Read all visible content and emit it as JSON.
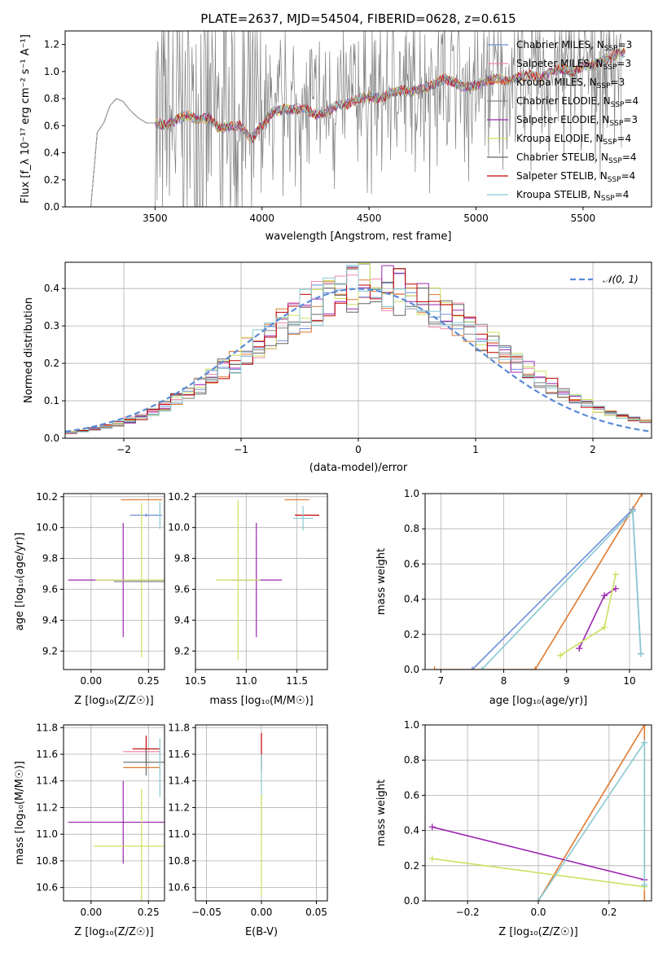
{
  "colors": {
    "chabrier_miles": "#6f8fd6",
    "salpeter_miles": "#f08aa8",
    "kroupa_miles": "#e07a30",
    "chabrier_elodie": "#888888",
    "salpeter_elodie": "#9c27b0",
    "kroupa_elodie": "#cde060",
    "chabrier_stelib": "#666666",
    "salpeter_stelib": "#c00000",
    "kroupa_stelib": "#88c8d0",
    "gaussian": "#5b8bd6",
    "data_spectrum": "#808080"
  },
  "chart_data": [
    {
      "id": "spectrum",
      "type": "line",
      "title": "PLATE=2637, MJD=54504, FIBERID=0628, z=0.615",
      "xlabel": "wavelength [Angstrom, rest frame]",
      "ylabel": "Flux [f_λ 10⁻¹⁷ erg cm⁻² s⁻¹ A⁻¹]",
      "xlim": [
        3080,
        5820
      ],
      "ylim": [
        0,
        1.3
      ],
      "xticks": [
        "3500",
        "4000",
        "4500",
        "5000",
        "5500"
      ],
      "yticks": [
        "0.0",
        "0.2",
        "0.4",
        "0.6",
        "0.8",
        "1.0",
        "1.2"
      ],
      "legend_position": "upper-right",
      "legend": [
        {
          "text": "Chabrier MILES, N",
          "sub": "SSP",
          "suffix": "=3",
          "color": "#6f8fd6"
        },
        {
          "text": "Salpeter MILES, N",
          "sub": "SSP",
          "suffix": "=3",
          "color": "#f08aa8"
        },
        {
          "text": "Kroupa MILES, N",
          "sub": "SSP",
          "suffix": "=3",
          "color": "#e07a30"
        },
        {
          "text": "Chabrier ELODIE, N",
          "sub": "SSP",
          "suffix": "=4",
          "color": "#888888"
        },
        {
          "text": "Salpeter ELODIE, N",
          "sub": "SSP",
          "suffix": "=3",
          "color": "#9c27b0"
        },
        {
          "text": "Kroupa ELODIE, N",
          "sub": "SSP",
          "suffix": "=4",
          "color": "#cde060"
        },
        {
          "text": "Chabrier STELIB, N",
          "sub": "SSP",
          "suffix": "=4",
          "color": "#666666"
        },
        {
          "text": "Salpeter STELIB, N",
          "sub": "SSP",
          "suffix": "=4",
          "color": "#c00000"
        },
        {
          "text": "Kroupa STELIB, N",
          "sub": "SSP",
          "suffix": "=4",
          "color": "#88c8d0"
        }
      ],
      "model_continuum": {
        "x": [
          3200,
          3230,
          3260,
          3290,
          3320,
          3350,
          3380,
          3420,
          3460,
          3500,
          3550,
          3600,
          3650,
          3700,
          3750,
          3800,
          3850,
          3900,
          3950,
          4000,
          4050,
          4100,
          4150,
          4200,
          4250,
          4300,
          4350,
          4400,
          4450,
          4500,
          4550,
          4600,
          4650,
          4700,
          4750,
          4800,
          4850,
          4900,
          4950,
          5000,
          5050,
          5100,
          5150,
          5200,
          5250,
          5300,
          5350,
          5400,
          5450,
          5500,
          5550,
          5600,
          5650,
          5700
        ],
        "y": [
          0.0,
          0.55,
          0.62,
          0.75,
          0.8,
          0.78,
          0.72,
          0.66,
          0.62,
          0.62,
          0.6,
          0.64,
          0.68,
          0.64,
          0.66,
          0.58,
          0.6,
          0.6,
          0.5,
          0.6,
          0.7,
          0.72,
          0.72,
          0.73,
          0.68,
          0.7,
          0.75,
          0.76,
          0.8,
          0.82,
          0.8,
          0.84,
          0.86,
          0.85,
          0.88,
          0.9,
          0.95,
          0.92,
          0.88,
          0.9,
          0.93,
          0.95,
          0.92,
          0.96,
          0.98,
          0.95,
          1.0,
          1.02,
          1.0,
          1.04,
          1.05,
          1.08,
          1.12,
          1.15
        ]
      },
      "data_noise_range": [
        3500,
        5680
      ]
    },
    {
      "id": "residual_histogram",
      "type": "bar",
      "xlabel": "(data-model)/error",
      "ylabel": "Normed distribution",
      "xlim": [
        -2.5,
        2.5
      ],
      "ylim": [
        0,
        0.47
      ],
      "xticks": [
        "−2",
        "−1",
        "0",
        "1",
        "2"
      ],
      "yticks": [
        "0.0",
        "0.1",
        "0.2",
        "0.3",
        "0.4"
      ],
      "legend_position": "upper-right",
      "legend": [
        {
          "text": "𝒩(0, 1)",
          "color": "#5b8bd6"
        }
      ],
      "bins_x": [
        -2.5,
        2.5,
        50
      ]
    },
    {
      "id": "age_vs_Z",
      "type": "scatter",
      "xlabel": "Z [log₁₀(Z/Z☉)]",
      "ylabel": "age  [log₁₀(age/yr)]",
      "xlim": [
        -0.12,
        0.32
      ],
      "ylim": [
        9.08,
        10.22
      ],
      "xticks": [
        "0.00",
        "0.25"
      ],
      "yticks": [
        "9.2",
        "9.4",
        "9.6",
        "9.8",
        "10.0",
        "10.2"
      ]
    },
    {
      "id": "age_vs_mass",
      "type": "scatter",
      "xlabel": "mass [log₁₀(M/M☉)]",
      "ylabel": "",
      "xlim": [
        10.5,
        11.8
      ],
      "ylim": [
        9.08,
        10.22
      ],
      "xticks": [
        "10.5",
        "11.0",
        "11.5"
      ],
      "yticks": [
        "9.2",
        "9.4",
        "9.6",
        "9.8",
        "10.0",
        "10.2"
      ]
    },
    {
      "id": "massweight_vs_age",
      "type": "line",
      "xlabel": "age  [log₁₀(age/yr)]",
      "ylabel": "mass weight",
      "xlim": [
        6.75,
        10.35
      ],
      "ylim": [
        0,
        1.0
      ],
      "xticks": [
        "7",
        "8",
        "9",
        "10"
      ],
      "yticks": [
        "0.0",
        "0.2",
        "0.4",
        "0.6",
        "0.8",
        "1.0"
      ],
      "series": [
        {
          "color": "#6f8fd6",
          "x": [
            7.5,
            10.05,
            10.18
          ],
          "y": [
            0.0,
            0.91,
            0.09
          ]
        },
        {
          "color": "#e07a30",
          "x": [
            6.9,
            8.5,
            10.2
          ],
          "y": [
            0.0,
            0.0,
            1.0
          ]
        },
        {
          "color": "#9c27b0",
          "x": [
            9.2,
            9.6,
            9.78
          ],
          "y": [
            0.12,
            0.42,
            0.46
          ]
        },
        {
          "color": "#cde060",
          "x": [
            8.9,
            9.6,
            9.78
          ],
          "y": [
            0.08,
            0.24,
            0.54
          ]
        },
        {
          "color": "#88c8d0",
          "x": [
            7.65,
            10.05,
            10.18
          ],
          "y": [
            0.0,
            0.9,
            0.09
          ]
        }
      ]
    },
    {
      "id": "mass_vs_Z",
      "type": "scatter",
      "xlabel": "Z [log₁₀(Z/Z☉)]",
      "ylabel": "mass [log₁₀(M/M☉)]",
      "xlim": [
        -0.12,
        0.32
      ],
      "ylim": [
        10.5,
        11.82
      ],
      "xticks": [
        "0.00",
        "0.25"
      ],
      "yticks": [
        "10.6",
        "10.8",
        "11.0",
        "11.2",
        "11.4",
        "11.6",
        "11.8"
      ]
    },
    {
      "id": "mass_vs_EBV",
      "type": "scatter",
      "xlabel": "E(B-V)",
      "ylabel": "",
      "xlim": [
        -0.06,
        0.06
      ],
      "ylim": [
        10.5,
        11.82
      ],
      "xticks": [
        "−0.05",
        "0.00",
        "0.05"
      ],
      "yticks": [
        "10.6",
        "10.8",
        "11.0",
        "11.2",
        "11.4",
        "11.6",
        "11.8"
      ]
    },
    {
      "id": "massweight_vs_Z",
      "type": "line",
      "xlabel": "Z [log₁₀(Z/Z☉)]",
      "ylabel": "mass weight",
      "xlim": [
        -0.32,
        0.32
      ],
      "ylim": [
        0,
        1.0
      ],
      "xticks": [
        "−0.2",
        "0.0",
        "0.2"
      ],
      "yticks": [
        "0.0",
        "0.2",
        "0.4",
        "0.6",
        "0.8",
        "1.0"
      ],
      "series": [
        {
          "color": "#e07a30",
          "x": [
            0.0,
            0.3,
            0.3
          ],
          "y": [
            0.0,
            1.0,
            0.0
          ]
        },
        {
          "color": "#9c27b0",
          "x": [
            -0.3,
            0.3
          ],
          "y": [
            0.42,
            0.12
          ]
        },
        {
          "color": "#cde060",
          "x": [
            -0.3,
            0.3
          ],
          "y": [
            0.24,
            0.08
          ]
        },
        {
          "color": "#88c8d0",
          "x": [
            0.0,
            0.3,
            0.3
          ],
          "y": [
            0.0,
            0.9,
            0.09
          ]
        }
      ]
    }
  ]
}
